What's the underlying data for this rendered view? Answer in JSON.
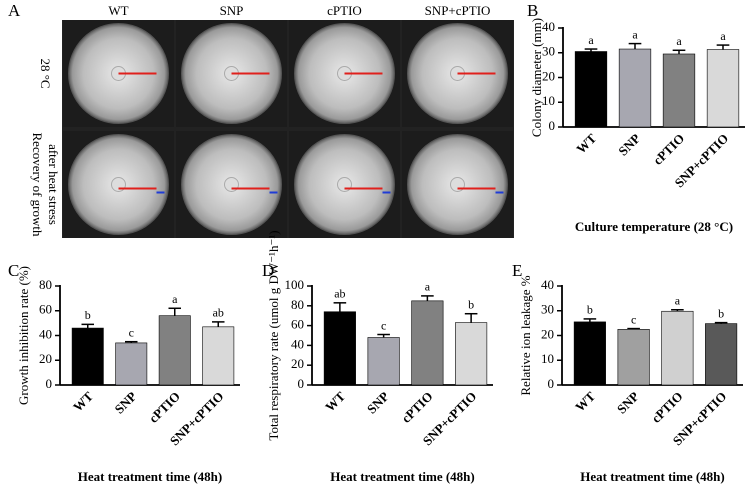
{
  "photo_panel": {
    "letter": "A",
    "columns": [
      "WT",
      "SNP",
      "cPTIO",
      "SNP+cPTIO"
    ],
    "rows": [
      [
        "28 °C"
      ],
      [
        "Recovery of growth",
        "after heat stress"
      ]
    ]
  },
  "chart_data": [
    {
      "type": "bar",
      "panel": "B",
      "y_label": "Colony diameter (mm)",
      "x_label": "Culture temperature (28 °C)",
      "categories": [
        "WT",
        "SNP",
        "cPTIO",
        "SNP+cPTIO"
      ],
      "values": [
        30.5,
        31.5,
        29.5,
        31.3
      ],
      "errors": [
        1.0,
        2.2,
        1.5,
        1.8
      ],
      "annotations": [
        "a",
        "a",
        "a",
        "a"
      ],
      "colors": [
        "#000000",
        "#a7a7b0",
        "#818181",
        "#d9d9d9"
      ],
      "ylim": [
        0,
        40
      ],
      "yticks": [
        0,
        10,
        20,
        30,
        40
      ]
    },
    {
      "type": "bar",
      "panel": "C",
      "y_label": "Growth inhibition rate (%)",
      "x_label": "Heat treatment time (48h)",
      "categories": [
        "WT",
        "SNP",
        "cPTIO",
        "SNP+cPTIO"
      ],
      "values": [
        46,
        34,
        56,
        47
      ],
      "errors": [
        3,
        1,
        6,
        4
      ],
      "annotations": [
        "b",
        "c",
        "a",
        "ab"
      ],
      "colors": [
        "#000000",
        "#a7a7b0",
        "#818181",
        "#d9d9d9"
      ],
      "ylim": [
        0,
        80
      ],
      "yticks": [
        0,
        20,
        40,
        60,
        80
      ]
    },
    {
      "type": "bar",
      "panel": "D",
      "y_label": "Total respiratory rate (umol g DW⁻¹h⁻¹)",
      "x_label": "Heat treatment time (48h)",
      "categories": [
        "WT",
        "SNP",
        "cPTIO",
        "SNP+cPTIO"
      ],
      "values": [
        74,
        48,
        85,
        63
      ],
      "errors": [
        9,
        3,
        5,
        9
      ],
      "annotations": [
        "ab",
        "c",
        "a",
        "b"
      ],
      "colors": [
        "#000000",
        "#a7a7b0",
        "#818181",
        "#d9d9d9"
      ],
      "ylim": [
        0,
        100
      ],
      "yticks": [
        0,
        20,
        40,
        60,
        80,
        100
      ]
    },
    {
      "type": "bar",
      "panel": "E",
      "y_label": "Relative ion leakage %",
      "x_label": "Heat treatment time (48h)",
      "categories": [
        "WT",
        "SNP",
        "cPTIO",
        "SNP+cPTIO"
      ],
      "values": [
        25.5,
        22.5,
        29.8,
        24.8
      ],
      "errors": [
        1.2,
        0.3,
        0.6,
        0.4
      ],
      "annotations": [
        "b",
        "c",
        "a",
        "b"
      ],
      "colors": [
        "#000000",
        "#a0a0a0",
        "#d0d0d0",
        "#595959"
      ],
      "ylim": [
        0,
        40
      ],
      "yticks": [
        0,
        10,
        20,
        30,
        40
      ]
    }
  ]
}
